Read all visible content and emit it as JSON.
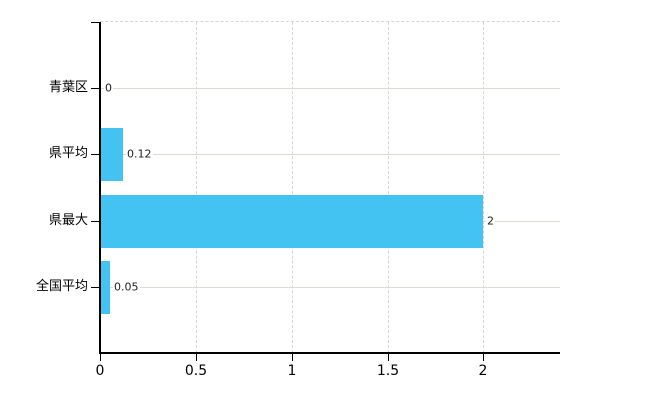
{
  "chart_data": {
    "type": "bar",
    "orientation": "horizontal",
    "title": "",
    "xlabel": "",
    "ylabel": "",
    "categories": [
      "青葉区",
      "県平均",
      "県最大",
      "全国平均"
    ],
    "values": [
      0,
      0.12,
      2,
      0.05
    ],
    "data_labels": [
      "0",
      "0.12",
      "2",
      "0.05"
    ],
    "x_ticks": [
      0,
      0.5,
      1,
      1.5,
      2
    ],
    "x_tick_labels": [
      "0",
      "0.5",
      "1",
      "1.5",
      "2"
    ],
    "xlim": [
      0,
      2.4
    ],
    "grid": true,
    "legend": false,
    "colors": {
      "bar": "#42c3f1",
      "grid_solid": "#d9ded4",
      "grid_dashed": "#d4d8ce",
      "axis": "#000000",
      "text": "#000000",
      "data_label_text": "#222222",
      "background": "#ffffff"
    }
  }
}
